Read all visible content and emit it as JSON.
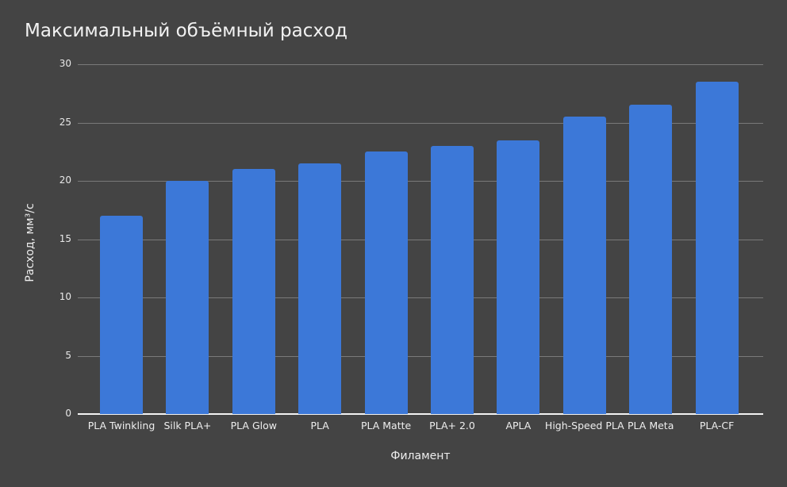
{
  "chart_data": {
    "type": "bar",
    "title": "Максимальный объёмный расход",
    "xlabel": "Филамент",
    "ylabel": "Расход, мм³/с",
    "categories": [
      "PLA Twinkling",
      "Silk PLA+",
      "PLA Glow",
      "PLA",
      "PLA Matte",
      "PLA+ 2.0",
      "APLA",
      "High-Speed PLA",
      "PLA Meta",
      "PLA-CF"
    ],
    "values": [
      17,
      20,
      21,
      21.5,
      22.5,
      23,
      23.5,
      25.5,
      26.5,
      28.5
    ],
    "ylim": [
      0,
      30
    ],
    "yticks": [
      "0",
      "5",
      "10",
      "15",
      "20",
      "25",
      "30"
    ],
    "grid": true,
    "legend": "none",
    "bar_color": "#3c78d8",
    "background": "#444444"
  }
}
